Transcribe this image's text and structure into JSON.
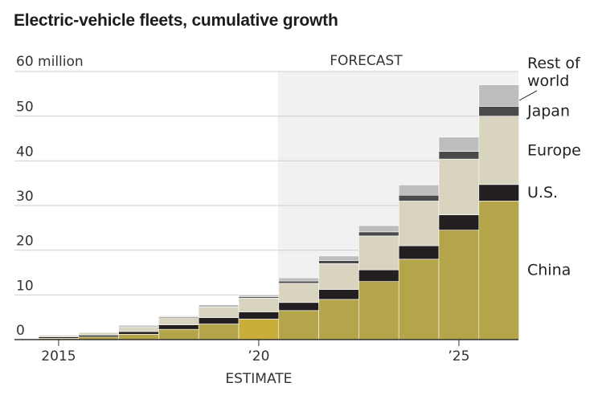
{
  "chart_data": {
    "type": "bar",
    "stacked": true,
    "title": "Electric-vehicle fleets, cumulative growth",
    "unit_label": "60 million",
    "ylim": [
      0,
      60
    ],
    "y_ticks": [
      "0",
      "10",
      "20",
      "30",
      "40",
      "50"
    ],
    "x_tick_labels": [
      "2015",
      "’20",
      "’25"
    ],
    "categories": [
      "2015",
      "2016",
      "2017",
      "2018",
      "2019",
      "2020",
      "2021",
      "2022",
      "2023",
      "2024",
      "2025",
      "2026"
    ],
    "annotations": {
      "forecast": "FORECAST",
      "estimate": "ESTIMATE"
    },
    "forecast_from": "2021",
    "estimate_year": "2020",
    "legend_placement": "right",
    "grid": true,
    "series": [
      {
        "name": "China",
        "color": "#b4a44a",
        "values": [
          0.3,
          0.6,
          1.2,
          2.3,
          3.5,
          4.6,
          6.5,
          9.0,
          13.0,
          18.0,
          24.5,
          31.0
        ]
      },
      {
        "name": "U.S.",
        "color": "#231f20",
        "values": [
          0.3,
          0.4,
          0.6,
          1.0,
          1.4,
          1.6,
          1.8,
          2.2,
          2.6,
          3.0,
          3.4,
          3.7
        ]
      },
      {
        "name": "Europe",
        "color": "#d9d4bf",
        "values": [
          0.4,
          0.6,
          1.0,
          1.6,
          2.4,
          3.1,
          4.3,
          5.8,
          7.6,
          10.0,
          12.5,
          15.3
        ]
      },
      {
        "name": "Japan",
        "color": "#4a4a4a",
        "values": [
          0.1,
          0.1,
          0.2,
          0.2,
          0.2,
          0.3,
          0.5,
          0.7,
          0.9,
          1.3,
          1.7,
          2.2
        ]
      },
      {
        "name": "Rest of world",
        "color": "#bdbcbe",
        "values": [
          0.1,
          0.1,
          0.2,
          0.2,
          0.3,
          0.4,
          0.7,
          1.0,
          1.4,
          2.3,
          3.2,
          4.8
        ]
      }
    ],
    "estimate_color": "#c9ae3c"
  }
}
